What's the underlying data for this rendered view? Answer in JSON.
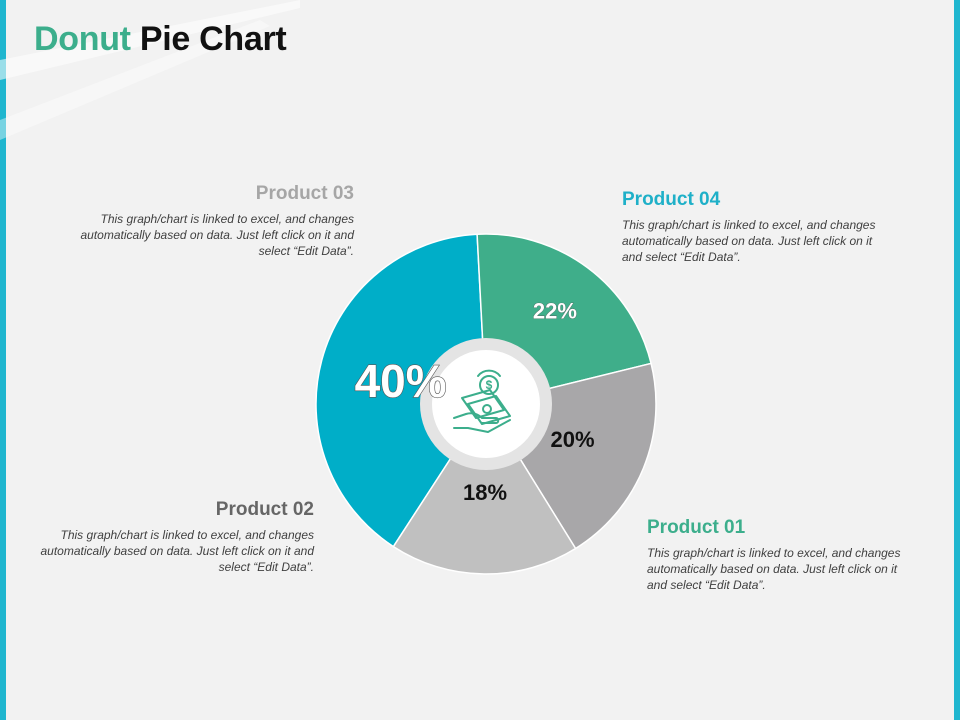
{
  "title": {
    "word1": "Donut",
    "word2": "Pie Chart"
  },
  "colors": {
    "accent_teal": "#3cae8c",
    "frame": "#1fb6cf",
    "product_01": "#3fae8a",
    "product_02": "#a8a7a9",
    "product_03": "#c0c0c0",
    "product_04": "#00aec8"
  },
  "icon": "money-hand-icon",
  "chart_data": {
    "type": "pie",
    "style": "donut",
    "slices": [
      {
        "name": "Product 04",
        "value": 40,
        "label": "40%",
        "color": "#00aec8"
      },
      {
        "name": "Product 01",
        "value": 22,
        "label": "22%",
        "color": "#3fae8a"
      },
      {
        "name": "Product 02",
        "value": 20,
        "label": "20%",
        "color": "#a8a7a9"
      },
      {
        "name": "Product 03",
        "value": 18,
        "label": "18%",
        "color": "#c0c0c0"
      }
    ]
  },
  "labels": {
    "p01": {
      "name": "Product 01",
      "desc": "This graph/chart is linked to excel, and changes automatically based on data. Just left click on it and select “Edit Data”.",
      "color": "#3cae8c"
    },
    "p02": {
      "name": "Product 02",
      "desc": "This graph/chart is linked to excel, and changes automatically based on data. Just left click on it and select “Edit Data”.",
      "color": "#666666"
    },
    "p03": {
      "name": "Product 03",
      "desc": "This graph/chart is linked to excel, and changes automatically based on data. Just left click on it and select “Edit Data”.",
      "color": "#a6a6a6"
    },
    "p04": {
      "name": "Product 04",
      "desc": "This graph/chart is linked to excel, and changes automatically based on data. Just left click on it and select “Edit Data”.",
      "color": "#1fb0c8"
    }
  }
}
